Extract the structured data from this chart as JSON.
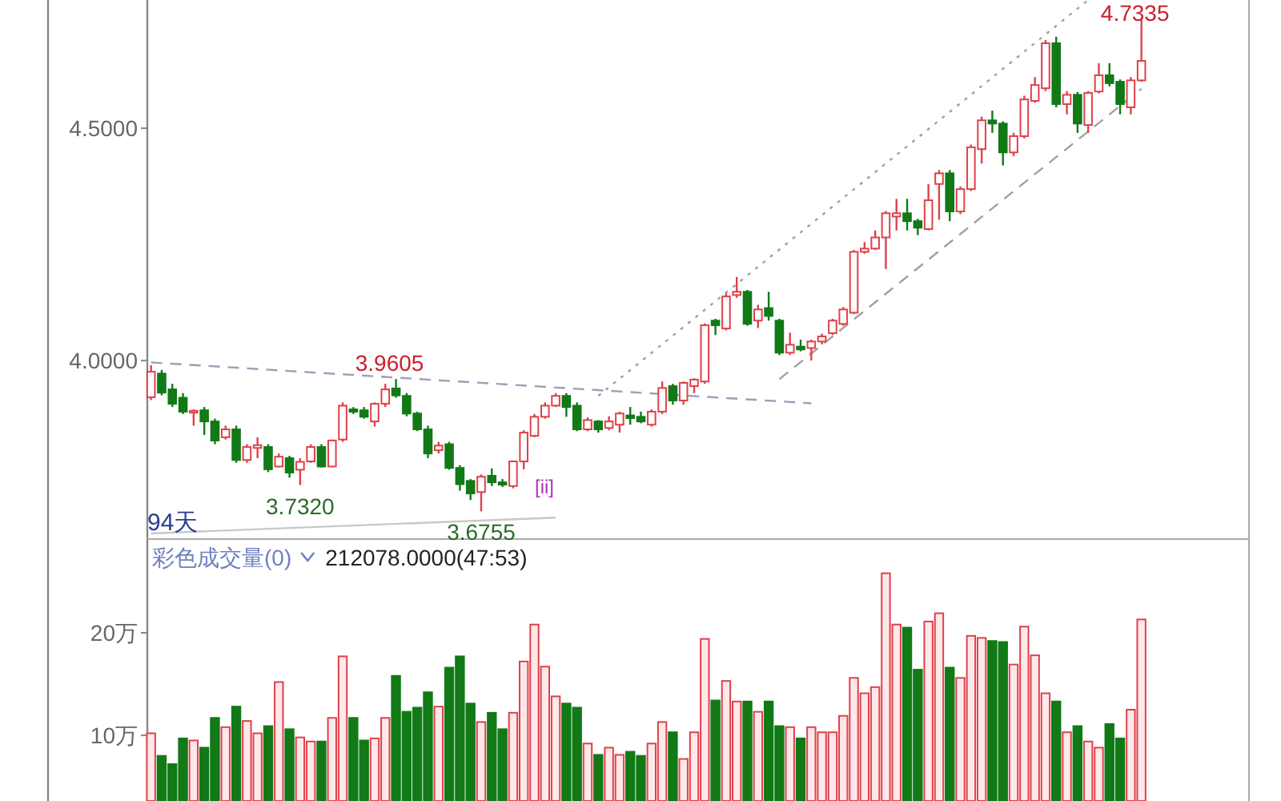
{
  "chart_data": [
    {
      "type": "candlestick",
      "categories": [
        null,
        null,
        null,
        null,
        null,
        null,
        null,
        null,
        null,
        null,
        null,
        null,
        null,
        null,
        null,
        null,
        null,
        null,
        null,
        null,
        null,
        null,
        null,
        null,
        null,
        null,
        null,
        null,
        null,
        null,
        null,
        null,
        null,
        null,
        null,
        null,
        null,
        null,
        null,
        null,
        null,
        null,
        null,
        null,
        null,
        null,
        null,
        null,
        null,
        null,
        null,
        null,
        null,
        null,
        null,
        null,
        null,
        null,
        null,
        null,
        null,
        null,
        null,
        null,
        null,
        null,
        null,
        null,
        null,
        null,
        null,
        null,
        null,
        null,
        null,
        null,
        null,
        null,
        null,
        null,
        null,
        null,
        null,
        null,
        null,
        null,
        null,
        null,
        null,
        null,
        null,
        null,
        null,
        null
      ],
      "ohlc": [
        [
          3.921,
          3.99,
          3.915,
          3.976
        ],
        [
          3.972,
          3.98,
          3.925,
          3.931
        ],
        [
          3.938,
          3.95,
          3.9,
          3.907
        ],
        [
          3.92,
          3.93,
          3.885,
          3.89
        ],
        [
          3.888,
          3.895,
          3.86,
          3.892
        ],
        [
          3.893,
          3.9,
          3.84,
          3.869
        ],
        [
          3.869,
          3.875,
          3.82,
          3.828
        ],
        [
          3.835,
          3.86,
          3.83,
          3.852
        ],
        [
          3.852,
          3.86,
          3.78,
          3.786
        ],
        [
          3.786,
          3.82,
          3.78,
          3.814
        ],
        [
          3.812,
          3.835,
          3.79,
          3.818
        ],
        [
          3.814,
          3.82,
          3.76,
          3.766
        ],
        [
          3.772,
          3.8,
          3.77,
          3.793
        ],
        [
          3.79,
          3.795,
          3.748,
          3.759
        ],
        [
          3.765,
          3.79,
          3.732,
          3.782
        ],
        [
          3.783,
          3.82,
          3.78,
          3.814
        ],
        [
          3.814,
          3.82,
          3.77,
          3.772
        ],
        [
          3.772,
          3.83,
          3.77,
          3.828
        ],
        [
          3.83,
          3.91,
          3.825,
          3.903
        ],
        [
          3.895,
          3.9,
          3.885,
          3.89
        ],
        [
          3.893,
          3.9,
          3.875,
          3.879
        ],
        [
          3.869,
          3.91,
          3.858,
          3.907
        ],
        [
          3.907,
          3.95,
          3.9,
          3.938
        ],
        [
          3.94,
          3.9605,
          3.92,
          3.925
        ],
        [
          3.924,
          3.93,
          3.88,
          3.886
        ],
        [
          3.886,
          3.89,
          3.848,
          3.852
        ],
        [
          3.852,
          3.86,
          3.79,
          3.8
        ],
        [
          3.807,
          3.825,
          3.8,
          3.817
        ],
        [
          3.82,
          3.825,
          3.765,
          3.769
        ],
        [
          3.769,
          3.775,
          3.72,
          3.734
        ],
        [
          3.741,
          3.745,
          3.7,
          3.714
        ],
        [
          3.717,
          3.755,
          3.6755,
          3.75
        ],
        [
          3.752,
          3.768,
          3.73,
          3.738
        ],
        [
          3.738,
          3.745,
          3.728,
          3.733
        ],
        [
          3.73,
          3.785,
          3.725,
          3.783
        ],
        [
          3.783,
          3.85,
          3.766,
          3.845
        ],
        [
          3.838,
          3.885,
          3.835,
          3.879
        ],
        [
          3.879,
          3.91,
          3.875,
          3.903
        ],
        [
          3.903,
          3.93,
          3.9,
          3.924
        ],
        [
          3.924,
          3.93,
          3.879,
          3.9
        ],
        [
          3.903,
          3.91,
          3.848,
          3.852
        ],
        [
          3.852,
          3.878,
          3.848,
          3.872
        ],
        [
          3.869,
          3.872,
          3.845,
          3.852
        ],
        [
          3.855,
          3.88,
          3.85,
          3.869
        ],
        [
          3.862,
          3.89,
          3.845,
          3.886
        ],
        [
          3.882,
          3.9,
          3.862,
          3.876
        ],
        [
          3.879,
          3.89,
          3.865,
          3.869
        ],
        [
          3.862,
          3.895,
          3.858,
          3.89
        ],
        [
          3.89,
          3.955,
          3.885,
          3.941
        ],
        [
          3.945,
          3.95,
          3.905,
          3.914
        ],
        [
          3.914,
          3.955,
          3.905,
          3.952
        ],
        [
          3.945,
          3.962,
          3.93,
          3.959
        ],
        [
          3.955,
          4.08,
          3.95,
          4.076
        ],
        [
          4.086,
          4.09,
          4.055,
          4.076
        ],
        [
          4.069,
          4.145,
          4.065,
          4.138
        ],
        [
          4.141,
          4.18,
          4.135,
          4.148
        ],
        [
          4.148,
          4.152,
          4.075,
          4.079
        ],
        [
          4.086,
          4.12,
          4.07,
          4.11
        ],
        [
          4.113,
          4.148,
          4.086,
          4.096
        ],
        [
          4.086,
          4.09,
          4.012,
          4.017
        ],
        [
          4.017,
          4.06,
          4.012,
          4.034
        ],
        [
          4.03,
          4.045,
          4.02,
          4.024
        ],
        [
          4.027,
          4.045,
          4.0,
          4.041
        ],
        [
          4.041,
          4.058,
          4.035,
          4.052
        ],
        [
          4.059,
          4.09,
          4.055,
          4.086
        ],
        [
          4.079,
          4.115,
          4.075,
          4.11
        ],
        [
          4.103,
          4.238,
          4.1,
          4.234
        ],
        [
          4.234,
          4.255,
          4.23,
          4.241
        ],
        [
          4.241,
          4.28,
          4.238,
          4.265
        ],
        [
          4.265,
          4.322,
          4.197,
          4.317
        ],
        [
          4.31,
          4.348,
          4.28,
          4.317
        ],
        [
          4.317,
          4.348,
          4.28,
          4.3
        ],
        [
          4.3,
          4.305,
          4.27,
          4.286
        ],
        [
          4.283,
          4.38,
          4.28,
          4.345
        ],
        [
          4.38,
          4.41,
          4.303,
          4.403
        ],
        [
          4.403,
          4.41,
          4.3,
          4.321
        ],
        [
          4.321,
          4.375,
          4.315,
          4.369
        ],
        [
          4.369,
          4.465,
          4.365,
          4.459
        ],
        [
          4.455,
          4.525,
          4.424,
          4.517
        ],
        [
          4.517,
          4.538,
          4.49,
          4.51
        ],
        [
          4.51,
          4.515,
          4.42,
          4.448
        ],
        [
          4.448,
          4.49,
          4.44,
          4.483
        ],
        [
          4.483,
          4.57,
          4.478,
          4.562
        ],
        [
          4.559,
          4.61,
          4.555,
          4.593
        ],
        [
          4.586,
          4.69,
          4.58,
          4.683
        ],
        [
          4.683,
          4.697,
          4.545,
          4.552
        ],
        [
          4.552,
          4.58,
          4.53,
          4.572
        ],
        [
          4.572,
          4.578,
          4.49,
          4.51
        ],
        [
          4.507,
          4.58,
          4.49,
          4.576
        ],
        [
          4.579,
          4.64,
          4.575,
          4.614
        ],
        [
          4.614,
          4.64,
          4.59,
          4.597
        ],
        [
          4.6,
          4.605,
          4.53,
          4.552
        ],
        [
          4.545,
          4.61,
          4.53,
          4.603
        ],
        [
          4.603,
          4.7335,
          4.6,
          4.645
        ]
      ],
      "colors": [
        "#e0414b",
        "#117a17",
        "#117a17",
        "#117a17",
        "#e0414b",
        "#117a17",
        "#117a17",
        "#e0414b",
        "#117a17",
        "#e0414b",
        "#e0414b",
        "#117a17",
        "#e0414b",
        "#117a17",
        "#e0414b",
        "#e0414b",
        "#117a17",
        "#e0414b",
        "#e0414b",
        "#117a17",
        "#117a17",
        "#e0414b",
        "#e0414b",
        "#117a17",
        "#117a17",
        "#117a17",
        "#117a17",
        "#e0414b",
        "#117a17",
        "#117a17",
        "#117a17",
        "#e0414b",
        "#117a17",
        "#117a17",
        "#e0414b",
        "#e0414b",
        "#e0414b",
        "#e0414b",
        "#e0414b",
        "#117a17",
        "#117a17",
        "#e0414b",
        "#117a17",
        "#e0414b",
        "#e0414b",
        "#117a17",
        "#117a17",
        "#e0414b",
        "#e0414b",
        "#117a17",
        "#e0414b",
        "#e0414b",
        "#e0414b",
        "#117a17",
        "#e0414b",
        "#e0414b",
        "#117a17",
        "#e0414b",
        "#117a17",
        "#117a17",
        "#e0414b",
        "#117a17",
        "#e0414b",
        "#e0414b",
        "#e0414b",
        "#e0414b",
        "#e0414b",
        "#e0414b",
        "#e0414b",
        "#e0414b",
        "#e0414b",
        "#117a17",
        "#117a17",
        "#e0414b",
        "#e0414b",
        "#117a17",
        "#e0414b",
        "#e0414b",
        "#e0414b",
        "#117a17",
        "#117a17",
        "#e0414b",
        "#e0414b",
        "#e0414b",
        "#e0414b",
        "#117a17",
        "#e0414b",
        "#117a17",
        "#e0414b",
        "#e0414b",
        "#117a17",
        "#117a17",
        "#e0414b",
        "#e0414b"
      ],
      "series": [
        {
          "type": "line",
          "values": [
            3.996,
            null,
            null,
            null,
            null,
            null,
            null,
            null,
            null,
            null,
            null,
            null,
            null,
            null,
            null,
            null,
            null,
            null,
            null,
            null,
            null,
            null,
            null,
            null,
            null,
            null,
            null,
            null,
            null,
            null,
            null,
            null,
            null,
            null,
            null,
            null,
            null,
            null,
            null,
            null,
            null,
            null,
            null,
            null,
            null,
            null,
            null,
            null,
            null,
            null,
            null,
            null,
            null,
            null,
            null,
            null,
            null,
            null,
            null,
            null,
            null,
            null,
            3.908,
            null,
            null,
            null,
            null,
            null,
            null,
            null,
            null,
            null,
            null,
            null,
            null,
            null,
            null,
            null,
            null,
            null,
            null,
            null,
            null,
            null,
            null,
            null,
            null,
            null,
            null,
            null,
            null,
            null,
            null,
            null
          ],
          "color": "#9aa0b8",
          "line_style": "dashed"
        },
        {
          "type": "line",
          "values": [
            null,
            null,
            null,
            null,
            null,
            null,
            null,
            null,
            null,
            null,
            null,
            null,
            null,
            null,
            null,
            null,
            null,
            null,
            null,
            null,
            null,
            null,
            null,
            null,
            null,
            null,
            null,
            null,
            null,
            null,
            null,
            null,
            null,
            null,
            null,
            null,
            null,
            null,
            null,
            null,
            null,
            null,
            3.924,
            null,
            null,
            null,
            null,
            null,
            null,
            null,
            null,
            null,
            null,
            null,
            null,
            null,
            null,
            null,
            null,
            null,
            null,
            null,
            null,
            null,
            null,
            null,
            null,
            null,
            null,
            null,
            null,
            null,
            null,
            null,
            null,
            null,
            null,
            null,
            null,
            null,
            null,
            null,
            null,
            null,
            null,
            null,
            null,
            null,
            4.776,
            null,
            null,
            null,
            null,
            null
          ],
          "color": "#a0a0a0",
          "line_style": "dotted"
        },
        {
          "type": "line",
          "values": [
            null,
            null,
            null,
            null,
            null,
            null,
            null,
            null,
            null,
            null,
            null,
            null,
            null,
            null,
            null,
            null,
            null,
            null,
            null,
            null,
            null,
            null,
            null,
            null,
            null,
            null,
            null,
            null,
            null,
            null,
            null,
            null,
            null,
            null,
            null,
            null,
            null,
            null,
            null,
            null,
            null,
            null,
            null,
            null,
            null,
            null,
            null,
            null,
            null,
            null,
            null,
            null,
            null,
            null,
            null,
            null,
            null,
            null,
            null,
            3.96,
            null,
            null,
            null,
            null,
            null,
            null,
            null,
            null,
            null,
            null,
            null,
            null,
            null,
            null,
            null,
            null,
            null,
            null,
            null,
            null,
            null,
            null,
            null,
            null,
            null,
            null,
            null,
            null,
            null,
            null,
            null,
            null,
            null,
            4.585
          ],
          "color": "#a0a0a0",
          "line_style": "dashed"
        },
        {
          "type": "line",
          "values": [
            3.628,
            null,
            null,
            null,
            null,
            null,
            null,
            null,
            null,
            null,
            null,
            null,
            null,
            null,
            null,
            null,
            null,
            null,
            null,
            null,
            null,
            null,
            null,
            null,
            null,
            null,
            null,
            null,
            null,
            null,
            null,
            null,
            null,
            null,
            null,
            null,
            null,
            null,
            3.662,
            null,
            null,
            null,
            null,
            null,
            null,
            null,
            null,
            null,
            null,
            null,
            null,
            null,
            null,
            null,
            null,
            null,
            null,
            null,
            null,
            null,
            null,
            null,
            null,
            null,
            null,
            null,
            null,
            null,
            null,
            null,
            null,
            null,
            null,
            null,
            null,
            null,
            null,
            null,
            null,
            null,
            null,
            null,
            null,
            null,
            null,
            null,
            null,
            null,
            null,
            null,
            null,
            null,
            null,
            null
          ],
          "color": "#c8c8c8",
          "line_style": "solid"
        }
      ],
      "ylim": [
        3.621,
        4.776
      ],
      "yticks": [
        {
          "value": 4.0,
          "label": "4.0000"
        },
        {
          "value": 4.5,
          "label": "4.5000"
        }
      ],
      "annotations": [
        {
          "text": "3.9605",
          "y": 3.9605
        },
        {
          "text": "3.7320",
          "y": 3.732
        },
        {
          "text": "3.6755",
          "y": 3.6755
        },
        {
          "text": "4.7335",
          "y": 4.7335
        },
        "[ii]",
        "94天"
      ]
    },
    {
      "type": "bar",
      "title": "彩色成交量(0)",
      "subtitle": "212078.0000(47:53)",
      "categories": [
        null,
        null,
        null,
        null,
        null,
        null,
        null,
        null,
        null,
        null,
        null,
        null,
        null,
        null,
        null,
        null,
        null,
        null,
        null,
        null,
        null,
        null,
        null,
        null,
        null,
        null,
        null,
        null,
        null,
        null,
        null,
        null,
        null,
        null,
        null,
        null,
        null,
        null,
        null,
        null,
        null,
        null,
        null,
        null,
        null,
        null,
        null,
        null,
        null,
        null,
        null,
        null,
        null,
        null,
        null,
        null,
        null,
        null,
        null,
        null,
        null,
        null,
        null,
        null,
        null,
        null,
        null,
        null,
        null,
        null,
        null,
        null,
        null,
        null,
        null,
        null,
        null,
        null,
        null,
        null,
        null,
        null,
        null,
        null,
        null,
        null,
        null,
        null,
        null,
        null,
        null,
        null,
        null,
        null
      ],
      "values": [
        10.2,
        8.0,
        7.2,
        9.7,
        9.5,
        8.8,
        11.7,
        10.8,
        12.8,
        11.4,
        10.2,
        10.9,
        15.2,
        10.6,
        9.8,
        9.4,
        9.4,
        11.7,
        17.7,
        11.7,
        9.5,
        9.7,
        11.7,
        15.8,
        12.3,
        12.7,
        14.2,
        12.8,
        16.6,
        17.7,
        13.1,
        11.3,
        12.2,
        10.6,
        12.2,
        17.2,
        20.8,
        16.7,
        13.8,
        13.1,
        12.7,
        9.2,
        8.1,
        8.8,
        8.1,
        8.4,
        8.0,
        9.2,
        11.3,
        10.3,
        7.7,
        10.3,
        19.4,
        13.4,
        15.3,
        13.3,
        13.3,
        12.3,
        13.3,
        10.9,
        10.8,
        9.7,
        10.8,
        10.3,
        10.3,
        11.9,
        15.6,
        14.1,
        14.7,
        25.8,
        20.8,
        20.5,
        16.4,
        21.1,
        21.9,
        16.6,
        15.6,
        19.7,
        19.5,
        19.2,
        19.1,
        16.9,
        20.6,
        17.8,
        14.1,
        13.3,
        10.3,
        10.9,
        9.4,
        8.8,
        11.1,
        9.7,
        12.5,
        21.3
      ],
      "colors": [
        "#e0414b",
        "#117a17",
        "#117a17",
        "#117a17",
        "#e0414b",
        "#117a17",
        "#117a17",
        "#e0414b",
        "#117a17",
        "#e0414b",
        "#e0414b",
        "#117a17",
        "#e0414b",
        "#117a17",
        "#e0414b",
        "#e0414b",
        "#117a17",
        "#e0414b",
        "#e0414b",
        "#117a17",
        "#117a17",
        "#e0414b",
        "#e0414b",
        "#117a17",
        "#117a17",
        "#117a17",
        "#117a17",
        "#e0414b",
        "#117a17",
        "#117a17",
        "#117a17",
        "#e0414b",
        "#117a17",
        "#117a17",
        "#e0414b",
        "#e0414b",
        "#e0414b",
        "#e0414b",
        "#e0414b",
        "#117a17",
        "#117a17",
        "#e0414b",
        "#117a17",
        "#e0414b",
        "#e0414b",
        "#117a17",
        "#117a17",
        "#e0414b",
        "#e0414b",
        "#117a17",
        "#e0414b",
        "#e0414b",
        "#e0414b",
        "#117a17",
        "#e0414b",
        "#e0414b",
        "#117a17",
        "#e0414b",
        "#117a17",
        "#117a17",
        "#e0414b",
        "#117a17",
        "#e0414b",
        "#e0414b",
        "#e0414b",
        "#e0414b",
        "#e0414b",
        "#e0414b",
        "#e0414b",
        "#e0414b",
        "#e0414b",
        "#117a17",
        "#117a17",
        "#e0414b",
        "#e0414b",
        "#117a17",
        "#e0414b",
        "#e0414b",
        "#e0414b",
        "#117a17",
        "#117a17",
        "#e0414b",
        "#e0414b",
        "#e0414b",
        "#e0414b",
        "#117a17",
        "#e0414b",
        "#117a17",
        "#e0414b",
        "#e0414b",
        "#117a17",
        "#117a17",
        "#e0414b",
        "#e0414b"
      ],
      "ylim": [
        3.6,
        28.9
      ],
      "yticks": [
        {
          "value": 10,
          "label": "10万"
        },
        {
          "value": 20,
          "label": "20万"
        }
      ]
    }
  ]
}
